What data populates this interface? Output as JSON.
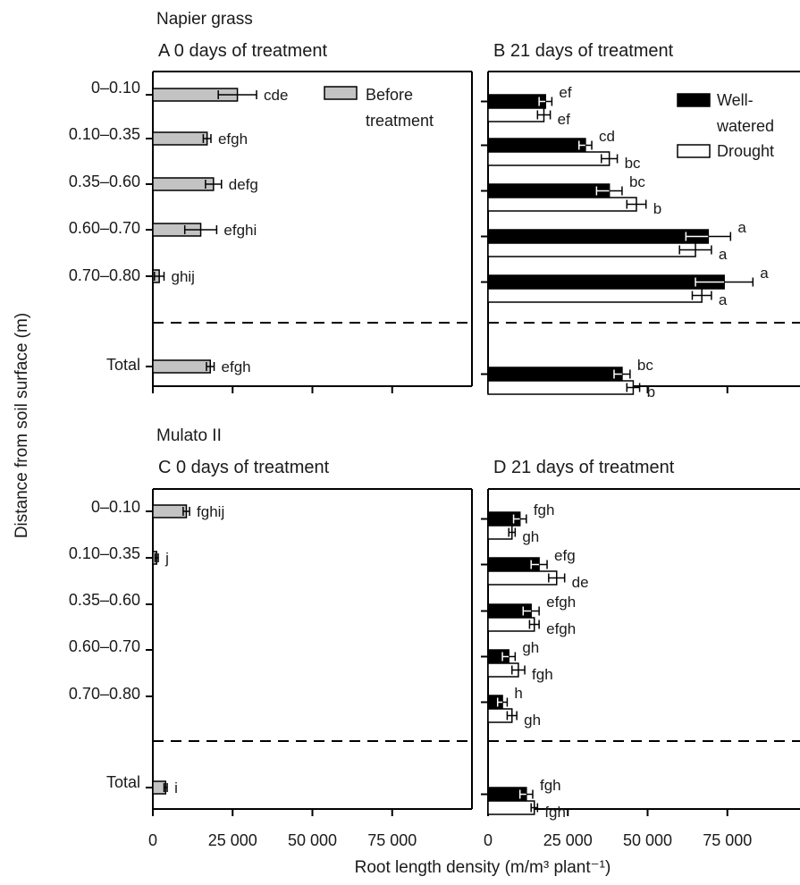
{
  "figure": {
    "ylabel": "Distance from soil surface (m)",
    "xlabel": "Root length density (m/m³ plant⁻¹)"
  },
  "colors": {
    "before": "#c3c3c3",
    "well_watered": "#000000",
    "drought": "#ffffff",
    "axis": "#000000"
  },
  "chart_data": [
    {
      "id": "A",
      "type": "bar",
      "orientation": "horizontal",
      "species": "Napier grass",
      "title": "A  0 days of treatment",
      "categories": [
        "0–0.10",
        "0.10–0.35",
        "0.35–0.60",
        "0.60–0.70",
        "0.70–0.80",
        "Total"
      ],
      "xlim": [
        0,
        100000
      ],
      "xticks": [
        0,
        25000,
        50000,
        75000
      ],
      "xtick_labels": [
        "",
        "",
        "",
        ""
      ],
      "legend": [
        {
          "name": "Before treatment",
          "lines": [
            "Before",
            "treatment"
          ],
          "color": "before"
        }
      ],
      "legend_position": "top-right",
      "series": [
        {
          "name": "Before treatment",
          "color": "before",
          "values": [
            26500,
            17000,
            19000,
            15000,
            2000,
            18000
          ],
          "errors": [
            6000,
            1200,
            2500,
            5000,
            1500,
            1200
          ],
          "letters": [
            "cde",
            "efgh",
            "defg",
            "efghi",
            "ghij",
            "efgh"
          ]
        }
      ]
    },
    {
      "id": "B",
      "type": "bar",
      "orientation": "horizontal",
      "title": "B  21 days of treatment",
      "categories": [
        "0–0.10",
        "0.10–0.35",
        "0.35–0.60",
        "0.60–0.70",
        "0.70–0.80",
        "Total"
      ],
      "xlim": [
        0,
        100000
      ],
      "xticks": [
        0,
        25000,
        50000,
        75000
      ],
      "xtick_labels": [
        "",
        "",
        "",
        ""
      ],
      "legend": [
        {
          "name": "Well-watered",
          "lines": [
            "Well-",
            "watered"
          ],
          "color": "well_watered"
        },
        {
          "name": "Drought",
          "lines": [
            "Drought"
          ],
          "color": "drought"
        }
      ],
      "legend_position": "top-right",
      "series": [
        {
          "name": "Well-watered",
          "color": "well_watered",
          "values": [
            18000,
            30500,
            38000,
            69000,
            74000,
            42000
          ],
          "errors": [
            2000,
            2000,
            4000,
            7000,
            9000,
            2500
          ],
          "letters": [
            "ef",
            "cd",
            "bc",
            "a",
            "a",
            "bc"
          ]
        },
        {
          "name": "Drought",
          "color": "drought",
          "values": [
            17500,
            38000,
            46500,
            65000,
            67000,
            45500
          ],
          "errors": [
            2000,
            2500,
            3000,
            5000,
            3000,
            2000
          ],
          "letters": [
            "ef",
            "bc",
            "b",
            "a",
            "a",
            "b"
          ]
        }
      ]
    },
    {
      "id": "C",
      "type": "bar",
      "orientation": "horizontal",
      "species": "Mulato II",
      "title": "C  0 days of treatment",
      "categories": [
        "0–0.10",
        "0.10–0.35",
        "0.35–0.60",
        "0.60–0.70",
        "0.70–0.80",
        "Total"
      ],
      "xlim": [
        0,
        100000
      ],
      "xticks": [
        0,
        25000,
        50000,
        75000
      ],
      "xtick_labels": [
        "0",
        "25 000",
        "50 000",
        "75 000"
      ],
      "series": [
        {
          "name": "Before treatment",
          "color": "before",
          "values": [
            10500,
            1200,
            0,
            0,
            0,
            4000
          ],
          "errors": [
            1000,
            500,
            0,
            0,
            0,
            500
          ],
          "letters": [
            "fghij",
            "j",
            "",
            "",
            "",
            "i"
          ]
        }
      ]
    },
    {
      "id": "D",
      "type": "bar",
      "orientation": "horizontal",
      "title": "D  21 days of treatment",
      "categories": [
        "0–0.10",
        "0.10–0.35",
        "0.35–0.60",
        "0.60–0.70",
        "0.70–0.80",
        "Total"
      ],
      "xlim": [
        0,
        100000
      ],
      "xticks": [
        0,
        25000,
        50000,
        75000
      ],
      "xtick_labels": [
        "0",
        "25 000",
        "50 000",
        "75 000"
      ],
      "series": [
        {
          "name": "Well-watered",
          "color": "well_watered",
          "values": [
            10000,
            16000,
            13500,
            6500,
            4500,
            12000
          ],
          "errors": [
            2000,
            2500,
            2500,
            2000,
            1500,
            2000
          ],
          "letters": [
            "fgh",
            "efg",
            "efgh",
            "gh",
            "h",
            "fgh"
          ]
        },
        {
          "name": "Drought",
          "color": "drought",
          "values": [
            7500,
            21500,
            14500,
            9500,
            7500,
            14500
          ],
          "errors": [
            1000,
            2500,
            1500,
            2000,
            1500,
            1000
          ],
          "letters": [
            "gh",
            "de",
            "efgh",
            "fgh",
            "gh",
            "fgh"
          ]
        }
      ]
    }
  ]
}
